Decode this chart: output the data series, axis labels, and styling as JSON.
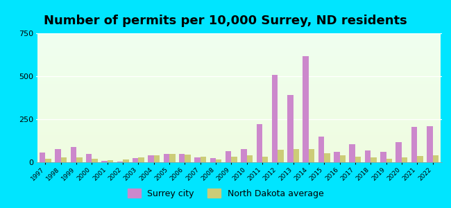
{
  "title": "Number of permits per 10,000 Surrey, ND residents",
  "years": [
    1997,
    1998,
    1999,
    2000,
    2001,
    2002,
    2003,
    2004,
    2005,
    2006,
    2007,
    2008,
    2009,
    2010,
    2011,
    2012,
    2013,
    2014,
    2015,
    2016,
    2017,
    2018,
    2019,
    2020,
    2021,
    2022
  ],
  "surrey_city": [
    55,
    75,
    90,
    50,
    10,
    5,
    25,
    40,
    50,
    50,
    30,
    25,
    65,
    75,
    220,
    510,
    390,
    615,
    150,
    60,
    105,
    70,
    60,
    115,
    205,
    210
  ],
  "nd_average": [
    22,
    28,
    28,
    22,
    13,
    18,
    28,
    42,
    50,
    46,
    32,
    18,
    32,
    40,
    32,
    72,
    75,
    78,
    52,
    42,
    32,
    28,
    22,
    28,
    38,
    42
  ],
  "surrey_color": "#cc88cc",
  "nd_color": "#cccc77",
  "plot_bg_top": "#f0fff0",
  "plot_bg_bottom": "#f5fce8",
  "outer_bg": "#00e5ff",
  "ylim": [
    0,
    750
  ],
  "yticks": [
    0,
    250,
    500,
    750
  ],
  "title_fontsize": 13,
  "legend_surrey": "Surrey city",
  "legend_nd": "North Dakota average",
  "bar_width": 0.38
}
